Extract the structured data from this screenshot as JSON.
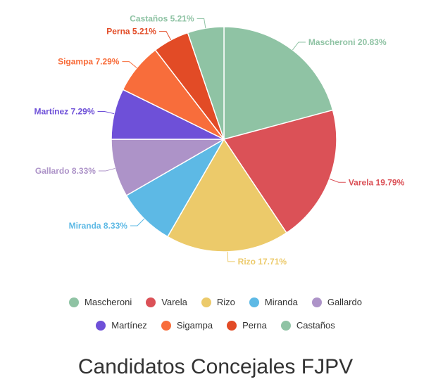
{
  "chart_data": {
    "type": "pie",
    "title": "Candidatos Concejales FJPV",
    "slices": [
      {
        "label": "Mascheroni",
        "value": 20.83,
        "value_label": "20.83%",
        "color": "#8fc3a4"
      },
      {
        "label": "Varela",
        "value": 19.79,
        "value_label": "19.79%",
        "color": "#db5157"
      },
      {
        "label": "Rizo",
        "value": 17.71,
        "value_label": "17.71%",
        "color": "#ecca6a"
      },
      {
        "label": "Miranda",
        "value": 8.33,
        "value_label": "8.33%",
        "color": "#5db9e5"
      },
      {
        "label": "Gallardo",
        "value": 8.33,
        "value_label": "8.33%",
        "color": "#ad93c8"
      },
      {
        "label": "Martínez",
        "value": 7.29,
        "value_label": "7.29%",
        "color": "#6e50d8"
      },
      {
        "label": "Sigampa",
        "value": 7.29,
        "value_label": "7.29%",
        "color": "#f86d3b"
      },
      {
        "label": "Perna",
        "value": 5.21,
        "value_label": "5.21%",
        "color": "#e24b26"
      },
      {
        "label": "Castaños",
        "value": 5.21,
        "value_label": "5.21%",
        "color": "#8fc3a4"
      }
    ],
    "legend": {
      "placement": "bottom"
    },
    "start_angle": "top"
  }
}
